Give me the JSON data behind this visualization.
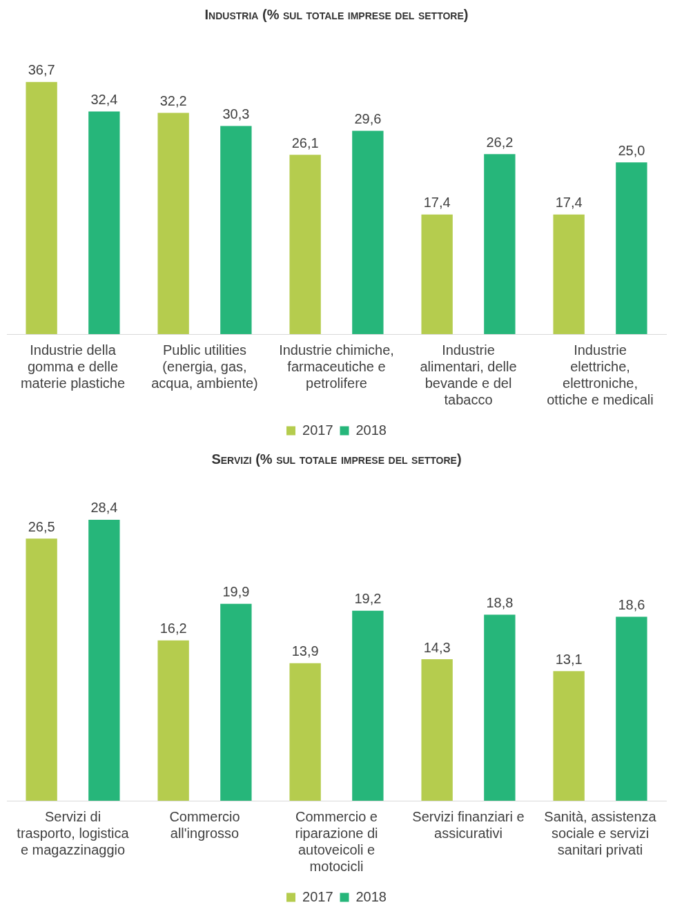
{
  "chart_data": [
    {
      "type": "bar",
      "title": "Industria (% sul totale imprese del settore)",
      "categories": [
        "Industrie della gomma e delle materie plastiche",
        "Public utilities (energia, gas, acqua, ambiente)",
        "Industrie chimiche, farmaceutiche e petrolifere",
        "Industrie alimentari, delle bevande e del tabacco",
        "Industrie elettriche, elettroniche, ottiche e medicali"
      ],
      "series": [
        {
          "name": "2017",
          "color": "#b5cc4e",
          "values": [
            36.7,
            32.2,
            26.1,
            17.4,
            17.4
          ],
          "value_labels": [
            "36,7",
            "32,2",
            "26,1",
            "17,4",
            "17,4"
          ]
        },
        {
          "name": "2018",
          "color": "#26b67a",
          "values": [
            32.4,
            30.3,
            29.6,
            26.2,
            25.0
          ],
          "value_labels": [
            "32,4",
            "30,3",
            "29,6",
            "26,2",
            "25,0"
          ]
        }
      ],
      "legend": "bottom",
      "grid": false
    },
    {
      "type": "bar",
      "title": "Servizi (% sul totale imprese del settore)",
      "categories": [
        "Servizi di trasporto, logistica e magazzinaggio",
        "Commercio all'ingrosso",
        "Commercio e riparazione di autoveicoli e motocicli",
        "Servizi finanziari e assicurativi",
        "Sanità, assistenza sociale e servizi sanitari privati"
      ],
      "series": [
        {
          "name": "2017",
          "color": "#b5cc4e",
          "values": [
            26.5,
            16.2,
            13.9,
            14.3,
            13.1
          ],
          "value_labels": [
            "26,5",
            "16,2",
            "13,9",
            "14,3",
            "13,1"
          ]
        },
        {
          "name": "2018",
          "color": "#26b67a",
          "values": [
            28.4,
            19.9,
            19.2,
            18.8,
            18.6
          ],
          "value_labels": [
            "28,4",
            "19,9",
            "19,2",
            "18,8",
            "18,6"
          ]
        }
      ],
      "legend": "bottom",
      "grid": false
    }
  ]
}
